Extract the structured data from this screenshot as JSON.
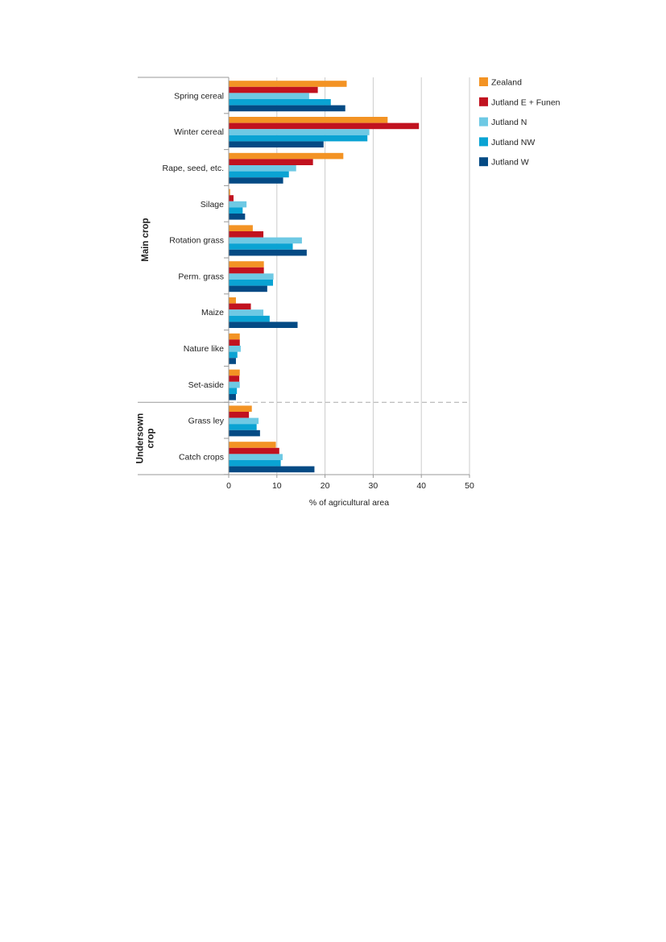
{
  "chart_data": {
    "type": "bar",
    "orientation": "horizontal",
    "xlabel": "% of agricultural area",
    "xlim": [
      0,
      50
    ],
    "xticks": [
      0,
      10,
      20,
      30,
      40,
      50
    ],
    "grid": true,
    "legend_position": "right",
    "groups": [
      {
        "label": "Main crop",
        "categories": [
          "Spring cereal",
          "Winter cereal",
          "Rape, seed, etc.",
          "Silage",
          "Rotation grass",
          "Perm. grass",
          "Maize",
          "Nature like",
          "Set-aside"
        ]
      },
      {
        "label": "Undersown crop",
        "label_lines": [
          "Undersown",
          "crop"
        ],
        "categories": [
          "Grass ley",
          "Catch crops"
        ]
      }
    ],
    "categories": [
      "Spring cereal",
      "Winter cereal",
      "Rape, seed, etc.",
      "Silage",
      "Rotation grass",
      "Perm. grass",
      "Maize",
      "Nature like",
      "Set-aside",
      "Grass ley",
      "Catch crops"
    ],
    "series": [
      {
        "name": "Zealand",
        "color": "#f39324",
        "values": [
          24.5,
          33.0,
          23.8,
          0.3,
          5.0,
          7.3,
          1.5,
          2.3,
          2.3,
          4.8,
          9.8
        ]
      },
      {
        "name": "Jutland E + Funen",
        "color": "#c1121f",
        "values": [
          18.5,
          39.5,
          17.5,
          1.0,
          7.2,
          7.3,
          4.6,
          2.3,
          2.2,
          4.2,
          10.5
        ]
      },
      {
        "name": "Jutland N",
        "color": "#6ec9e4",
        "values": [
          16.7,
          29.2,
          14.0,
          3.7,
          15.2,
          9.3,
          7.2,
          2.5,
          2.3,
          6.2,
          11.2
        ]
      },
      {
        "name": "Jutland NW",
        "color": "#0aa3d3",
        "values": [
          21.2,
          28.8,
          12.5,
          2.9,
          13.3,
          9.2,
          8.5,
          1.8,
          1.7,
          5.8,
          10.8
        ]
      },
      {
        "name": "Jutland W",
        "color": "#044a84",
        "values": [
          24.2,
          19.7,
          11.3,
          3.4,
          16.2,
          8.0,
          14.3,
          1.5,
          1.5,
          6.5,
          17.8
        ]
      }
    ]
  }
}
